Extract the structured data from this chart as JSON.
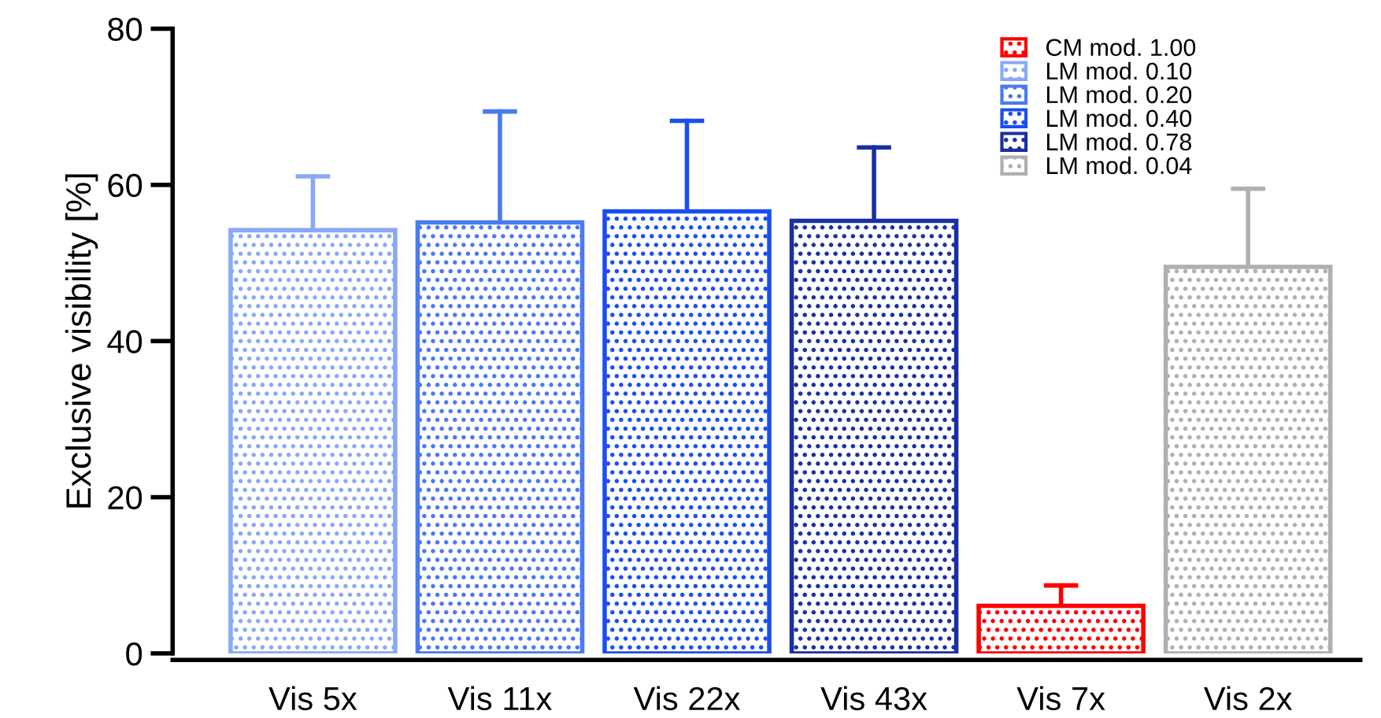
{
  "chart_data": {
    "type": "bar",
    "ylabel": "Exclusive visibility [%]",
    "categories": [
      "Vis 5x",
      "Vis 11x",
      "Vis 22x",
      "Vis 43x",
      "Vis 7x",
      "Vis 2x"
    ],
    "series": [
      {
        "name": "CM mod. 1.00",
        "color": "#ff0000",
        "values": [
          null,
          null,
          null,
          null,
          6.1,
          null
        ],
        "errors": [
          null,
          null,
          null,
          null,
          [
            6.1,
            8.7
          ],
          null
        ]
      },
      {
        "name": "LM mod. 0.10",
        "color": "#8aa8f5",
        "values": [
          54.2,
          null,
          null,
          null,
          null,
          null
        ],
        "errors": [
          [
            54.2,
            61.1
          ],
          null,
          null,
          null,
          null,
          null
        ]
      },
      {
        "name": "LM mod. 0.20",
        "color": "#4a7af0",
        "values": [
          null,
          55.2,
          null,
          null,
          null,
          null
        ],
        "errors": [
          null,
          [
            55.2,
            69.4
          ],
          null,
          null,
          null,
          null
        ]
      },
      {
        "name": "LM mod. 0.40",
        "color": "#1a4ef0",
        "values": [
          null,
          null,
          56.6,
          null,
          null,
          null
        ],
        "errors": [
          null,
          null,
          [
            56.6,
            68.2
          ],
          null,
          null,
          null
        ]
      },
      {
        "name": "LM mod. 0.78",
        "color": "#1a2fa0",
        "values": [
          null,
          null,
          null,
          55.4,
          null,
          null
        ],
        "errors": [
          null,
          null,
          null,
          [
            55.4,
            64.8
          ],
          null,
          null
        ]
      },
      {
        "name": "LM mod. 0.04",
        "color": "#b0b0b0",
        "values": [
          null,
          null,
          null,
          null,
          null,
          49.5
        ],
        "errors": [
          null,
          null,
          null,
          null,
          null,
          [
            49.5,
            59.5
          ]
        ]
      }
    ],
    "ylim": [
      0,
      80
    ],
    "yticks": [
      0,
      20,
      40,
      60,
      80
    ],
    "grid": false,
    "legend": "top right"
  }
}
